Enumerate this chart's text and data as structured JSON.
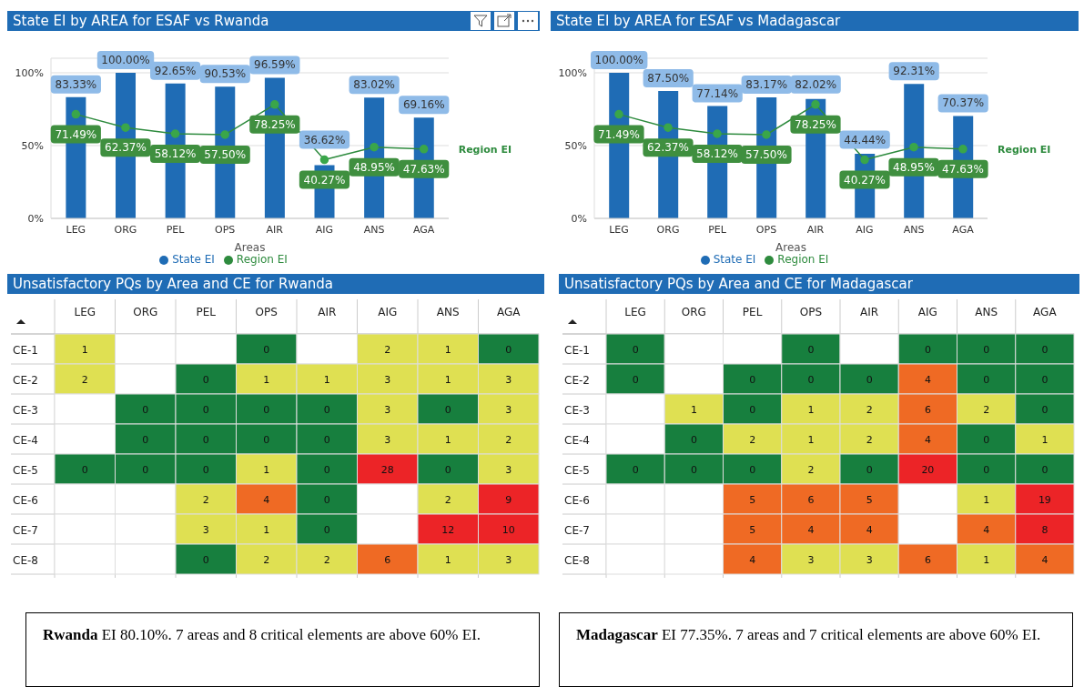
{
  "chart_data": [
    {
      "type": "bar",
      "title": "State EI by AREA for ESAF vs Rwanda",
      "xlabel": "Areas",
      "categories": [
        "LEG",
        "ORG",
        "PEL",
        "OPS",
        "AIR",
        "AIG",
        "ANS",
        "AGA"
      ],
      "series": [
        {
          "name": "State EI",
          "type": "bar",
          "color": "#1f6cb5",
          "values": [
            83.33,
            100,
            92.65,
            90.53,
            96.59,
            36.62,
            83.02,
            69.16
          ],
          "value_labels": [
            "83.33%",
            "100.00%",
            "92.65%",
            "90.53%",
            "96.59%",
            "36.62%",
            "83.02%",
            "69.16%"
          ]
        },
        {
          "name": "Region EI",
          "type": "line",
          "color": "#2e8b3e",
          "marker": "circle",
          "values": [
            71.49,
            62.37,
            58.12,
            57.5,
            78.25,
            40.27,
            48.95,
            47.63
          ],
          "value_labels": [
            "71.49%",
            "62.37%",
            "58.12%",
            "57.50%",
            "78.25%",
            "40.27%",
            "48.95%",
            "47.63%"
          ]
        }
      ],
      "ylim": [
        0,
        110
      ],
      "yticks": [
        {
          "value": 0,
          "label": "0%"
        },
        {
          "value": 50,
          "label": "50%"
        },
        {
          "value": 100,
          "label": "100%"
        }
      ],
      "grid": "y",
      "legend": "bottom"
    },
    {
      "type": "bar",
      "title": "State EI by AREA for ESAF vs Madagascar",
      "xlabel": "Areas",
      "categories": [
        "LEG",
        "ORG",
        "PEL",
        "OPS",
        "AIR",
        "AIG",
        "ANS",
        "AGA"
      ],
      "series": [
        {
          "name": "State EI",
          "type": "bar",
          "color": "#1f6cb5",
          "values": [
            100,
            87.5,
            77.14,
            83.17,
            82.02,
            44.44,
            92.31,
            70.37
          ],
          "value_labels": [
            "100.00%",
            "87.50%",
            "77.14%",
            "83.17%",
            "82.02%",
            "44.44%",
            "92.31%",
            "70.37%"
          ]
        },
        {
          "name": "Region EI",
          "type": "line",
          "color": "#2e8b3e",
          "marker": "circle",
          "values": [
            71.49,
            62.37,
            58.12,
            57.5,
            78.25,
            40.27,
            48.95,
            47.63
          ],
          "value_labels": [
            "71.49%",
            "62.37%",
            "58.12%",
            "57.50%",
            "78.25%",
            "40.27%",
            "48.95%",
            "47.63%"
          ]
        }
      ],
      "ylim": [
        0,
        110
      ],
      "yticks": [
        {
          "value": 0,
          "label": "0%"
        },
        {
          "value": 50,
          "label": "50%"
        },
        {
          "value": 100,
          "label": "100%"
        }
      ],
      "grid": "y",
      "legend": "bottom"
    },
    {
      "type": "heatmap",
      "data_labels": true,
      "title": "Unsatisfactory PQs by Area and CE for Rwanda",
      "categories": [
        "LEG",
        "ORG",
        "PEL",
        "OPS",
        "AIR",
        "AIG",
        "ANS",
        "AGA"
      ],
      "y_categories": [
        "CE-1",
        "CE-2",
        "CE-3",
        "CE-4",
        "CE-5",
        "CE-6",
        "CE-7",
        "CE-8"
      ],
      "cells": [
        [
          1,
          null,
          null,
          0,
          null,
          2,
          1,
          0
        ],
        [
          2,
          null,
          0,
          1,
          1,
          3,
          1,
          3
        ],
        [
          null,
          0,
          0,
          0,
          0,
          3,
          0,
          3
        ],
        [
          null,
          0,
          0,
          0,
          0,
          3,
          1,
          2
        ],
        [
          0,
          0,
          0,
          1,
          0,
          28,
          0,
          3
        ],
        [
          null,
          null,
          2,
          4,
          0,
          null,
          2,
          9
        ],
        [
          null,
          null,
          3,
          1,
          0,
          null,
          12,
          10
        ],
        [
          null,
          null,
          0,
          2,
          2,
          6,
          1,
          3
        ]
      ]
    },
    {
      "type": "heatmap",
      "data_labels": true,
      "title": "Unsatisfactory PQs by Area and CE for Madagascar",
      "categories": [
        "LEG",
        "ORG",
        "PEL",
        "OPS",
        "AIR",
        "AIG",
        "ANS",
        "AGA"
      ],
      "y_categories": [
        "CE-1",
        "CE-2",
        "CE-3",
        "CE-4",
        "CE-5",
        "CE-6",
        "CE-7",
        "CE-8"
      ],
      "cells": [
        [
          0,
          null,
          null,
          0,
          null,
          0,
          0,
          0
        ],
        [
          0,
          null,
          0,
          0,
          0,
          4,
          0,
          0
        ],
        [
          null,
          1,
          0,
          1,
          2,
          6,
          2,
          0
        ],
        [
          null,
          0,
          2,
          1,
          2,
          4,
          0,
          1
        ],
        [
          0,
          0,
          0,
          2,
          0,
          20,
          0,
          0
        ],
        [
          null,
          null,
          5,
          6,
          5,
          null,
          1,
          19
        ],
        [
          null,
          null,
          5,
          4,
          4,
          null,
          4,
          8
        ],
        [
          null,
          null,
          4,
          3,
          3,
          6,
          1,
          4
        ]
      ]
    },
    {
      "type": "other",
      "title": "Rwanda",
      "annotations": [
        "EI 80.10%. 7 areas and 8 critical elements are above 60% EI."
      ]
    },
    {
      "type": "other",
      "title": "Madagascar",
      "annotations": [
        "EI 77.35%. 7 areas and 7 critical elements are above 60% EI."
      ]
    }
  ]
}
